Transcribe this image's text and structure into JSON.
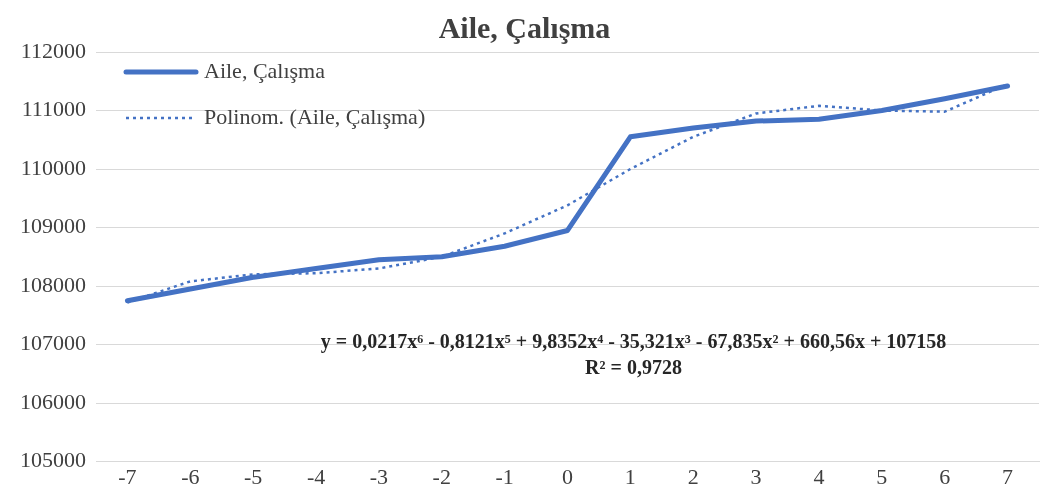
{
  "chart_data": {
    "type": "line",
    "title": "Aile, Çalışma",
    "x": [
      -7,
      -6,
      -5,
      -4,
      -3,
      -2,
      -1,
      0,
      1,
      2,
      3,
      4,
      5,
      6,
      7
    ],
    "series": [
      {
        "name": "Aile, Çalışma",
        "color": "#4472c4",
        "line_style": "solid",
        "values": [
          107750,
          107950,
          108150,
          108300,
          108450,
          108500,
          108680,
          108950,
          110550,
          110700,
          110820,
          110850,
          111000,
          111200,
          111420
        ]
      },
      {
        "name": "Polinom. (Aile, Çalışma)",
        "type": "line",
        "color": "#4472c4",
        "line_style": "dotted",
        "x": [
          -7,
          -6,
          -5,
          -4,
          -3,
          -2,
          -1,
          0,
          1,
          2,
          3,
          4,
          5,
          6,
          7
        ],
        "values": [
          107720,
          108080,
          108200,
          108220,
          108300,
          108500,
          108900,
          109380,
          110000,
          110550,
          110950,
          111080,
          111000,
          110980,
          111450
        ]
      }
    ],
    "xlim": [
      -7.5,
      7.5
    ],
    "xticks": [
      -7,
      -6,
      -5,
      -4,
      -3,
      -2,
      -1,
      0,
      1,
      2,
      3,
      4,
      5,
      6,
      7
    ],
    "ylim": [
      105000,
      112000
    ],
    "yticks": [
      105000,
      106000,
      107000,
      108000,
      109000,
      110000,
      111000,
      112000
    ],
    "grid": "y",
    "legend": "top left",
    "annotations": [
      "y = 0,0217x⁶ - 0,8121x⁵ + 9,8352x⁴ - 35,321x³ - 67,835x² + 660,56x + 107158",
      "R² = 0,9728"
    ]
  }
}
